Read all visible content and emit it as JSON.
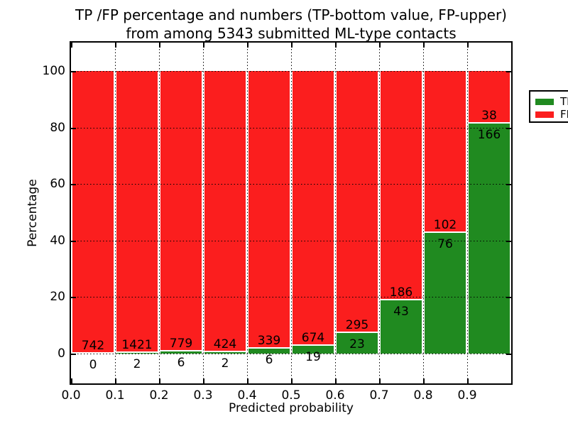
{
  "figure": {
    "title_line1": "TP /FP percentage and numbers (TP-bottom value, FP-upper)",
    "title_line2": "from among 5343 submitted ML-type contacts",
    "xlabel": "Predicted probability",
    "ylabel": "Percentage"
  },
  "legend": {
    "position": "upper right",
    "items": [
      {
        "label": "TP",
        "color": "#208a20"
      },
      {
        "label": "FP",
        "color": "#fb1e1e"
      }
    ]
  },
  "chart_data": {
    "type": "bar",
    "stacked": true,
    "normalized_to_percent": true,
    "title": "TP /FP percentage and numbers (TP-bottom value, FP-upper) from among 5343 submitted ML-type contacts",
    "xlabel": "Predicted probability",
    "ylabel": "Percentage",
    "total_submitted_contacts": 5343,
    "xlim": [
      0.0,
      1.0
    ],
    "ylim": [
      -10.5,
      110.1
    ],
    "grid": "dotted, drawn above bars",
    "bin_edges": [
      0.0,
      0.1,
      0.2,
      0.3,
      0.4,
      0.5,
      0.6,
      0.7,
      0.8,
      0.9,
      1.0
    ],
    "xticks": [
      "0.0",
      "0.1",
      "0.2",
      "0.3",
      "0.4",
      "0.5",
      "0.6",
      "0.7",
      "0.8",
      "0.9"
    ],
    "yticks": [
      0,
      20,
      40,
      60,
      80,
      100
    ],
    "series": [
      {
        "name": "TP",
        "color": "#208a20",
        "counts": [
          0,
          2,
          6,
          2,
          6,
          19,
          23,
          43,
          76,
          166
        ]
      },
      {
        "name": "FP",
        "color": "#fb1e1e",
        "counts": [
          742,
          1421,
          779,
          424,
          339,
          674,
          295,
          186,
          102,
          38
        ]
      }
    ],
    "tp_percent_of_bin": [
      0.0,
      0.14,
      0.76,
      0.47,
      1.74,
      2.74,
      7.23,
      18.78,
      42.7,
      81.37
    ]
  }
}
